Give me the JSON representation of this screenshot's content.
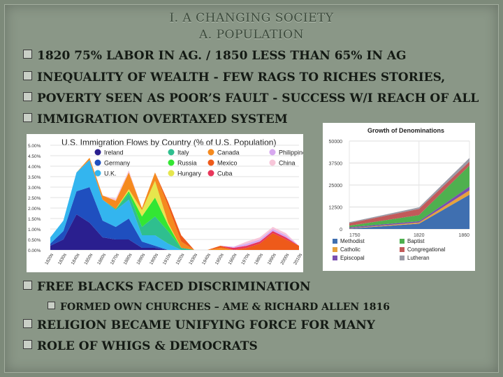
{
  "slide": {
    "title_line1": "I. A CHANGING SOCIETY",
    "title_line2": "A. POPULATION",
    "bullets": [
      "1820 75% LABOR IN AG. / 1850 LESS THAN 65%  IN AG",
      "INEQUALITY OF WEALTH - FEW RAGS TO RICHES STORIES,",
      "POVERTY SEEN AS POOR’S FAULT - SUCCESS W/I REACH OF ALL",
      "IMMIGRATION OVERTAXED SYSTEM",
      "FREE BLACKS FACED DISCRIMINATION",
      "RELIGION BECAME UNIFYING FORCE FOR MANY",
      "ROLE OF WHIGS & DEMOCRATS"
    ],
    "sub_bullet": "FORMED OWN CHURCHES – AME & RICHARD ALLEN  1816"
  },
  "chart_data": [
    {
      "type": "area",
      "title": "U.S. Immigration Flows by Country (% of U.S. Population)",
      "ylim": [
        0,
        5
      ],
      "ytick_labels": [
        "0.00%",
        "0.50%",
        "1.00%",
        "1.50%",
        "2.00%",
        "2.50%",
        "3.00%",
        "3.50%",
        "4.00%",
        "4.50%",
        "5.00%"
      ],
      "categories": [
        "1820s",
        "1830s",
        "1840s",
        "1850s",
        "1860s",
        "1870s",
        "1880s",
        "1890s",
        "1900s",
        "1910s",
        "1920s",
        "1930s",
        "1940s",
        "1950s",
        "1960s",
        "1970s",
        "1980s",
        "1990s",
        "2000s",
        "2010s"
      ],
      "legend_position": "top",
      "colors": {
        "Ireland": "#2a1f8f",
        "Germany": "#1f4fbf",
        "U.K.": "#33b5ef",
        "Italy": "#2fbf8f",
        "Russia": "#33e633",
        "Hungary": "#e6e64d",
        "Canada": "#f58a1f",
        "Mexico": "#ee5a1a",
        "Cuba": "#e8365a",
        "Philippines": "#d7a8ef",
        "China": "#f7c6d9"
      },
      "series": [
        {
          "name": "Ireland",
          "values": [
            0.2,
            0.5,
            1.7,
            1.3,
            0.6,
            0.5,
            0.5,
            0.1,
            0.1,
            0,
            0,
            0,
            0,
            0,
            0,
            0,
            0,
            0,
            0,
            0
          ]
        },
        {
          "name": "Germany",
          "values": [
            0.1,
            0.4,
            1.1,
            1.7,
            0.8,
            0.6,
            1.0,
            0.3,
            0.1,
            0,
            0,
            0,
            0,
            0,
            0,
            0,
            0,
            0,
            0,
            0
          ]
        },
        {
          "name": "U.K.",
          "values": [
            0.3,
            0.5,
            0.9,
            1.3,
            1.0,
            0.8,
            0.9,
            0.3,
            0.5,
            0.3,
            0,
            0,
            0,
            0,
            0,
            0,
            0,
            0,
            0,
            0
          ]
        },
        {
          "name": "Italy",
          "values": [
            0,
            0,
            0,
            0,
            0,
            0.05,
            0.3,
            0.4,
            0.9,
            0.6,
            0.1,
            0,
            0,
            0,
            0,
            0,
            0,
            0,
            0,
            0
          ]
        },
        {
          "name": "Russia",
          "values": [
            0,
            0,
            0,
            0,
            0,
            0,
            0.1,
            0.5,
            0.9,
            0.3,
            0,
            0,
            0,
            0,
            0,
            0,
            0,
            0,
            0,
            0
          ]
        },
        {
          "name": "Hungary",
          "values": [
            0,
            0,
            0,
            0,
            0,
            0,
            0.1,
            0.3,
            0.8,
            0.1,
            0,
            0,
            0,
            0,
            0,
            0,
            0,
            0,
            0,
            0
          ]
        },
        {
          "name": "Canada",
          "values": [
            0,
            0,
            0,
            0.1,
            0.2,
            0.4,
            0.8,
            0.1,
            0.4,
            0.8,
            0.3,
            0,
            0,
            0.1,
            0,
            0,
            0,
            0,
            0,
            0
          ]
        },
        {
          "name": "Mexico",
          "values": [
            0,
            0,
            0,
            0,
            0,
            0,
            0,
            0,
            0,
            0.2,
            0.3,
            0,
            0,
            0.1,
            0,
            0.1,
            0.3,
            0.8,
            0.5,
            0.2
          ]
        },
        {
          "name": "Cuba",
          "values": [
            0,
            0,
            0,
            0,
            0,
            0,
            0,
            0,
            0,
            0,
            0,
            0,
            0,
            0,
            0.1,
            0.1,
            0.1,
            0.1,
            0.1,
            0
          ]
        },
        {
          "name": "Philippines",
          "values": [
            0,
            0,
            0,
            0,
            0,
            0,
            0,
            0,
            0,
            0,
            0,
            0,
            0,
            0,
            0.05,
            0.1,
            0.1,
            0.1,
            0.1,
            0
          ]
        },
        {
          "name": "China",
          "values": [
            0,
            0,
            0,
            0,
            0,
            0.1,
            0.1,
            0,
            0,
            0,
            0,
            0,
            0,
            0,
            0,
            0.1,
            0.1,
            0.1,
            0.1,
            0
          ]
        }
      ]
    },
    {
      "type": "area",
      "title": "Growth of Denominations",
      "x": [
        "1750",
        "1820",
        "1860"
      ],
      "ylim": [
        0,
        50000
      ],
      "ytick_labels": [
        "0",
        "12500",
        "25000",
        "37500",
        "50000"
      ],
      "legend_position": "bottom",
      "colors": {
        "Methodist": "#3f6fb0",
        "Catholic": "#e6a23c",
        "Episcopal": "#7a4fb0",
        "Baptist": "#4fb04f",
        "Congregational": "#c25a5a",
        "Lutheran": "#9a9aa6"
      },
      "series": [
        {
          "name": "Methodist",
          "values": [
            200,
            3000,
            19500
          ]
        },
        {
          "name": "Catholic",
          "values": [
            150,
            700,
            2500
          ]
        },
        {
          "name": "Episcopal",
          "values": [
            600,
            700,
            2100
          ]
        },
        {
          "name": "Baptist",
          "values": [
            900,
            3500,
            12000
          ]
        },
        {
          "name": "Congregational",
          "values": [
            1500,
            3500,
            2200
          ]
        },
        {
          "name": "Lutheran",
          "values": [
            500,
            900,
            2100
          ]
        }
      ]
    }
  ]
}
